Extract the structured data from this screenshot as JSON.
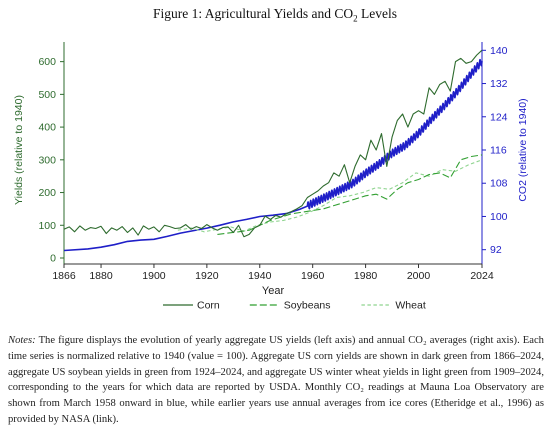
{
  "figure": {
    "title_prefix": "Figure 1: Agricultural Yields and CO",
    "title_sub": "2",
    "title_suffix": " Levels"
  },
  "notes": {
    "label": "Notes:",
    "text": "The figure displays the evolution of yearly aggregate US yields (left axis) and annual CO₂ averages (right axis). Each time series is normalized relative to 1940 (value = 100). Aggregate US corn yields are shown in dark green from 1866–2024, aggregate US soybean yields in green from 1924–2024, and aggregate US winter wheat yields in light green from 1909–2024, corresponding to the years for which data are reported by USDA. Monthly CO₂ readings at Mauna Loa Observatory are shown from March 1958 onward in blue, while earlier years use annual averages from ice cores (Etheridge et al., 1996) as provided by NASA (link)."
  },
  "chart_data": {
    "type": "line",
    "xlabel": "Year",
    "ylabel_left": "Yields (relative to 1940)",
    "ylabel_right": "CO2 (relative to 1940)",
    "xlim": [
      1866,
      2024
    ],
    "ylim_left": [
      0,
      660
    ],
    "ylim_right": [
      90,
      142
    ],
    "x_ticks": [
      1866,
      1880,
      1900,
      1920,
      1940,
      1960,
      1980,
      2000,
      2024
    ],
    "y_ticks_left": [
      0,
      100,
      200,
      300,
      400,
      500,
      600
    ],
    "y_ticks_right": [
      92,
      100,
      108,
      116,
      124,
      132,
      140
    ],
    "grid": false,
    "legend_position": "bottom",
    "colors": {
      "Corn": "#2e6b2e",
      "Soybeans": "#33a033",
      "Wheat": "#8fd48f",
      "CO2": "#1f1fc8"
    },
    "series": [
      {
        "name": "Corn",
        "axis": "left",
        "dash": "solid",
        "x": [
          1866,
          1868,
          1870,
          1872,
          1874,
          1876,
          1878,
          1880,
          1882,
          1884,
          1886,
          1888,
          1890,
          1892,
          1894,
          1896,
          1898,
          1900,
          1902,
          1904,
          1906,
          1908,
          1910,
          1912,
          1914,
          1916,
          1918,
          1920,
          1922,
          1924,
          1926,
          1928,
          1930,
          1932,
          1934,
          1936,
          1938,
          1940,
          1942,
          1944,
          1946,
          1948,
          1950,
          1952,
          1954,
          1956,
          1958,
          1960,
          1962,
          1964,
          1966,
          1968,
          1970,
          1972,
          1974,
          1976,
          1978,
          1980,
          1982,
          1984,
          1986,
          1988,
          1990,
          1992,
          1994,
          1996,
          1998,
          2000,
          2002,
          2004,
          2006,
          2008,
          2010,
          2012,
          2014,
          2016,
          2018,
          2020,
          2022,
          2024
        ],
        "values": [
          88,
          95,
          80,
          98,
          85,
          93,
          90,
          97,
          75,
          92,
          85,
          96,
          78,
          92,
          70,
          98,
          88,
          95,
          80,
          100,
          96,
          90,
          92,
          102,
          88,
          96,
          90,
          102,
          92,
          85,
          93,
          95,
          78,
          100,
          65,
          72,
          92,
          100,
          128,
          118,
          130,
          125,
          135,
          142,
          150,
          160,
          185,
          195,
          205,
          220,
          230,
          260,
          250,
          285,
          230,
          280,
          315,
          300,
          360,
          330,
          380,
          280,
          370,
          420,
          440,
          400,
          440,
          450,
          440,
          520,
          500,
          530,
          540,
          510,
          600,
          610,
          595,
          600,
          620,
          635
        ]
      },
      {
        "name": "Soybeans",
        "axis": "left",
        "dash": "long",
        "x": [
          1924,
          1928,
          1932,
          1936,
          1940,
          1944,
          1948,
          1952,
          1956,
          1960,
          1964,
          1968,
          1972,
          1976,
          1980,
          1984,
          1988,
          1992,
          1996,
          2000,
          2004,
          2008,
          2012,
          2016,
          2020,
          2024
        ],
        "values": [
          72,
          76,
          80,
          85,
          100,
          115,
          125,
          135,
          140,
          145,
          150,
          160,
          170,
          180,
          190,
          195,
          180,
          210,
          230,
          240,
          255,
          260,
          245,
          300,
          310,
          315
        ]
      },
      {
        "name": "Wheat",
        "axis": "left",
        "dash": "short",
        "x": [
          1909,
          1914,
          1919,
          1924,
          1929,
          1934,
          1939,
          1944,
          1949,
          1954,
          1959,
          1964,
          1969,
          1974,
          1979,
          1984,
          1989,
          1994,
          1999,
          2004,
          2009,
          2014,
          2019,
          2024
        ],
        "values": [
          85,
          92,
          80,
          88,
          95,
          82,
          100,
          110,
          115,
          125,
          140,
          160,
          185,
          190,
          200,
          215,
          210,
          230,
          260,
          250,
          270,
          265,
          285,
          300
        ]
      },
      {
        "name": "CO2",
        "axis": "right",
        "dash": "solid",
        "x": [
          1866,
          1875,
          1880,
          1885,
          1890,
          1895,
          1900,
          1905,
          1910,
          1915,
          1920,
          1925,
          1930,
          1935,
          1940,
          1945,
          1950,
          1955,
          1958,
          1960,
          1965,
          1970,
          1975,
          1980,
          1985,
          1990,
          1995,
          2000,
          2005,
          2010,
          2015,
          2020,
          2024
        ],
        "values": [
          91.8,
          92.2,
          92.6,
          93.2,
          94.0,
          94.3,
          94.5,
          95.2,
          96.0,
          96.6,
          97.2,
          97.9,
          98.7,
          99.3,
          100.0,
          100.3,
          100.7,
          101.7,
          102.5,
          103.2,
          104.7,
          106.3,
          107.9,
          110.4,
          112.6,
          115.2,
          117.1,
          120.0,
          123.5,
          126.8,
          130.4,
          134.4,
          137.4
        ]
      }
    ]
  }
}
